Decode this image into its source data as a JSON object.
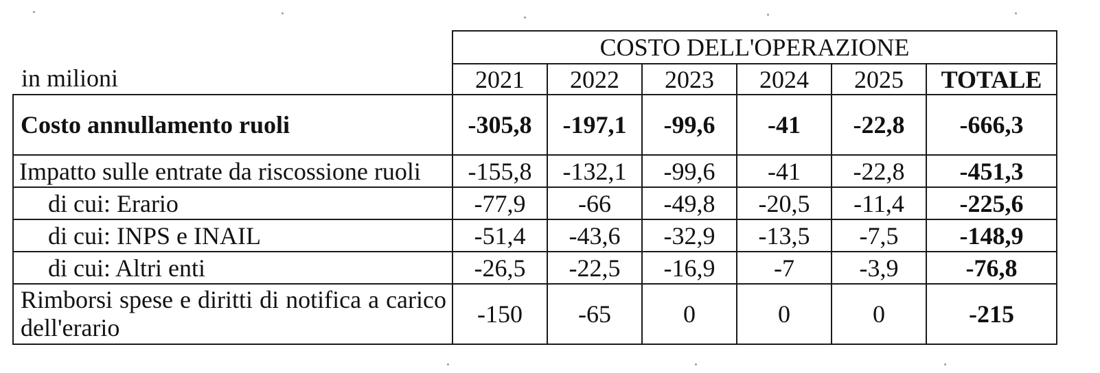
{
  "table": {
    "unit_label": "in milioni",
    "group_header": "COSTO DELL'OPERAZIONE",
    "columns": [
      "2021",
      "2022",
      "2023",
      "2024",
      "2025",
      "TOTALE"
    ],
    "rows": [
      {
        "label": "Costo annullamento ruoli",
        "bold": true,
        "values": [
          "-305,8",
          "-197,1",
          "-99,6",
          "-41",
          "-22,8",
          "-666,3"
        ]
      },
      {
        "label": "Impatto sulle entrate da riscossione ruoli",
        "values": [
          "-155,8",
          "-132,1",
          "-99,6",
          "-41",
          "-22,8",
          "-451,3"
        ]
      },
      {
        "label": "di cui: Erario",
        "values": [
          "-77,9",
          "-66",
          "-49,8",
          "-20,5",
          "-11,4",
          "-225,6"
        ]
      },
      {
        "label": "di cui: INPS e INAIL",
        "values": [
          "-51,4",
          "-43,6",
          "-32,9",
          "-13,5",
          "-7,5",
          "-148,9"
        ]
      },
      {
        "label": "di cui: Altri enti",
        "values": [
          "-26,5",
          "-22,5",
          "-16,9",
          "-7",
          "-3,9",
          "-76,8"
        ]
      },
      {
        "label": "Rimborsi spese e diritti di notifica a carico dell'erario",
        "values": [
          "-150",
          "-65",
          "0",
          "0",
          "0",
          "-215"
        ]
      }
    ]
  }
}
